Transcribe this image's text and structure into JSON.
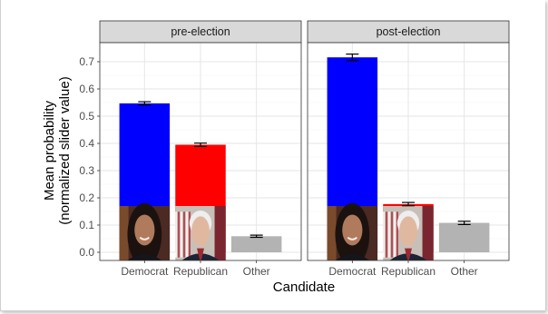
{
  "chart_data": {
    "type": "bar",
    "xlabel": "Candidate",
    "ylabel_lines": [
      "Mean probability",
      "(normalized slider value)"
    ],
    "ylim": [
      -0.03,
      0.77
    ],
    "yticks": [
      "0.0",
      "0.1",
      "0.2",
      "0.3",
      "0.4",
      "0.5",
      "0.6",
      "0.7"
    ],
    "yticks_values": [
      0,
      0.1,
      0.2,
      0.3,
      0.4,
      0.5,
      0.6,
      0.7
    ],
    "categories": [
      "Democrat",
      "Republican",
      "Other"
    ],
    "grid": true,
    "panels": [
      {
        "name": "pre-election",
        "values": [
          0.547,
          0.395,
          0.059
        ],
        "errors": [
          0.006,
          0.006,
          0.004
        ],
        "colors": [
          "#0000ff",
          "#ff0000",
          "#b3b3b3"
        ],
        "portrait": [
          "democrat-portrait",
          "republican-portrait",
          null
        ]
      },
      {
        "name": "post-election",
        "values": [
          0.716,
          0.177,
          0.108
        ],
        "errors": [
          0.012,
          0.006,
          0.006
        ],
        "colors": [
          "#0000ff",
          "#ff0000",
          "#b3b3b3"
        ],
        "portrait": [
          "democrat-portrait",
          "republican-portrait",
          null
        ]
      }
    ]
  }
}
